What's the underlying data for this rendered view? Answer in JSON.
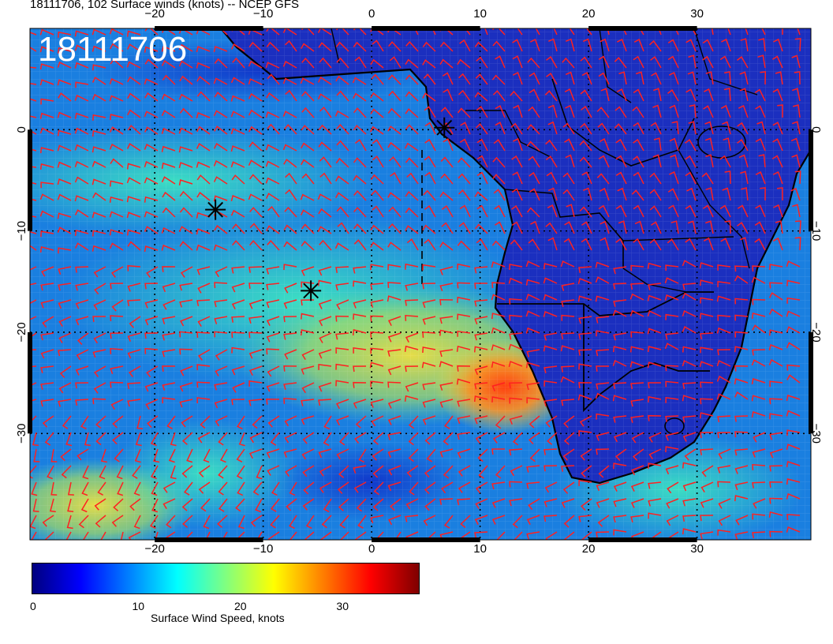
{
  "title": "18111706, 102 Surface winds (knots) -- NCEP GFS",
  "stamp": "18111706",
  "map": {
    "lon_min": -31.5,
    "lon_max": 40.5,
    "lat_min": -40.5,
    "lat_max": 10,
    "gridline_lons": [
      -20,
      -10,
      0,
      10,
      20,
      30
    ],
    "gridline_lats": [
      0,
      -10,
      -20,
      -30
    ],
    "lon_tick_labels": [
      {
        "lon": -20,
        "label": "−20"
      },
      {
        "lon": -10,
        "label": "−10"
      },
      {
        "lon": 0,
        "label": "0"
      },
      {
        "lon": 10,
        "label": "10"
      },
      {
        "lon": 20,
        "label": "20"
      },
      {
        "lon": 30,
        "label": "30"
      }
    ],
    "lat_tick_labels": [
      {
        "lat": 0,
        "label": "0"
      },
      {
        "lat": -10,
        "label": "−10"
      },
      {
        "lat": -20,
        "label": "−20"
      },
      {
        "lat": -30,
        "label": "−30"
      }
    ],
    "ocean_color": "#1a7fe0",
    "land_color": "#1b2fbf",
    "barb_color": "#ff2020",
    "markers": [
      {
        "lon": 6.7,
        "lat": 0.2
      },
      {
        "lon": -14.4,
        "lat": -7.9
      },
      {
        "lon": -5.6,
        "lat": -15.9
      }
    ]
  },
  "colorbar": {
    "title": "Surface Wind Speed, knots",
    "min": 0,
    "max": 38,
    "ticks": [
      {
        "value": 0,
        "label": "0"
      },
      {
        "value": 10,
        "label": "10"
      },
      {
        "value": 20,
        "label": "20"
      },
      {
        "value": 30,
        "label": "30"
      }
    ],
    "colors": [
      "#00007f",
      "#0000ff",
      "#0080ff",
      "#00ffff",
      "#80ff80",
      "#ffff00",
      "#ff8000",
      "#ff0000",
      "#7f0000"
    ]
  }
}
